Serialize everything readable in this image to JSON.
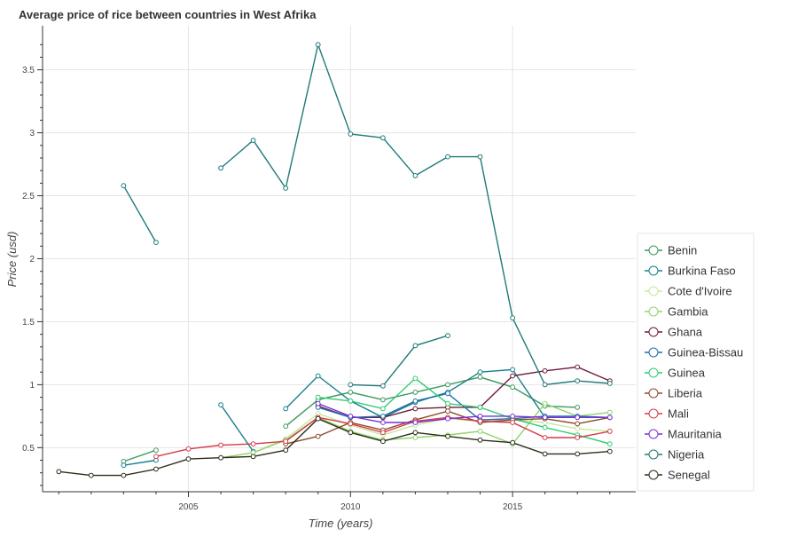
{
  "chart_data": {
    "type": "line",
    "title": "Average price of rice between countries in West Afrika",
    "xlabel": "Time (years)",
    "ylabel": "Price (usd)",
    "xlim": [
      2000.5,
      2018.8
    ],
    "ylim": [
      0.15,
      3.85
    ],
    "xticks": [
      2005,
      2010,
      2015
    ],
    "yticks": [
      0.5,
      1,
      1.5,
      2,
      2.5,
      3,
      3.5
    ],
    "ytick_labels": [
      "0.5",
      "1",
      "1.5",
      "2",
      "2.5",
      "3",
      "3.5"
    ],
    "grid": true,
    "legend_position": "right",
    "series": [
      {
        "name": "Benin",
        "color": "#3c9a5f",
        "x": [
          2003,
          2004,
          null,
          2008,
          2009,
          2010,
          2011,
          2012,
          2013,
          2014,
          2015,
          2016,
          2017,
          2018
        ],
        "y": [
          0.39,
          0.48,
          null,
          0.67,
          0.88,
          0.94,
          0.88,
          0.94,
          1.0,
          1.06,
          0.98,
          0.83,
          0.82,
          null
        ]
      },
      {
        "name": "Burkina Faso",
        "color": "#1a7f8e",
        "x": [
          2003,
          2004,
          null,
          2006,
          2007,
          null,
          2008,
          2009,
          2010,
          2011,
          2012,
          2013,
          2014,
          2015,
          2016
        ],
        "y": [
          0.36,
          0.4,
          null,
          0.84,
          0.47,
          null,
          0.81,
          1.07,
          0.87,
          0.74,
          0.86,
          0.94,
          1.1,
          1.12,
          0.74
        ]
      },
      {
        "name": "Cote d'Ivoire",
        "color": "#c7e89b",
        "x": [
          2007,
          2008,
          2009,
          2010,
          2011,
          2012,
          2013,
          2014,
          2015,
          2016,
          2017,
          2018
        ],
        "y": [
          0.46,
          0.57,
          0.77,
          0.68,
          0.6,
          0.68,
          0.73,
          0.71,
          0.72,
          0.7,
          0.65,
          0.63
        ]
      },
      {
        "name": "Gambia",
        "color": "#8fd46a",
        "x": [
          2006,
          2007,
          2008,
          2009,
          2010,
          2011,
          2012,
          2013,
          2014,
          2015,
          2016,
          2017,
          2018
        ],
        "y": [
          0.42,
          0.46,
          0.56,
          0.74,
          0.63,
          0.56,
          0.58,
          0.6,
          0.63,
          0.53,
          0.85,
          0.75,
          0.78
        ]
      },
      {
        "name": "Ghana",
        "color": "#6e1a3e",
        "x": [
          2009,
          2010,
          2011,
          2012,
          2013,
          2014,
          2015,
          2016,
          2017,
          2018
        ],
        "y": [
          0.83,
          0.74,
          0.74,
          0.81,
          0.82,
          0.82,
          1.07,
          1.11,
          1.14,
          1.03
        ]
      },
      {
        "name": "Guinea-Bissau",
        "color": "#1f6fa8",
        "x": [
          2009,
          2010,
          2011,
          2012,
          2013,
          2014,
          2015,
          2016,
          2017,
          2018
        ],
        "y": [
          0.82,
          0.74,
          0.75,
          0.87,
          0.93,
          0.72,
          0.73,
          0.75,
          0.75,
          0.74
        ]
      },
      {
        "name": "Guinea",
        "color": "#2ecc71",
        "x": [
          2009,
          2010,
          2011,
          2012,
          2013,
          2014,
          2015,
          2016,
          2017,
          2018
        ],
        "y": [
          0.9,
          0.87,
          0.81,
          1.05,
          0.85,
          0.82,
          0.73,
          0.66,
          0.6,
          0.53
        ]
      },
      {
        "name": "Liberia",
        "color": "#8b4a2b",
        "x": [
          2008,
          2009,
          2010,
          2011,
          2012,
          2013,
          2014,
          2015,
          2016,
          2017,
          2018
        ],
        "y": [
          0.53,
          0.59,
          0.7,
          0.64,
          0.72,
          0.79,
          0.7,
          0.72,
          0.73,
          0.69,
          0.74
        ]
      },
      {
        "name": "Mali",
        "color": "#d63a4a",
        "x": [
          2004,
          2005,
          2006,
          2007,
          2008,
          2009,
          2010,
          2011,
          2012,
          2013,
          2014,
          2015,
          2016,
          2017,
          2018
        ],
        "y": [
          0.43,
          0.49,
          0.52,
          0.53,
          0.55,
          0.74,
          0.69,
          0.62,
          0.71,
          0.74,
          0.71,
          0.7,
          0.58,
          0.58,
          0.63
        ]
      },
      {
        "name": "Mauritania",
        "color": "#7a2fd6",
        "x": [
          2009,
          2010,
          2011,
          2012,
          2013,
          2014,
          2015,
          2016,
          2017,
          2018
        ],
        "y": [
          0.85,
          0.75,
          0.7,
          0.7,
          0.73,
          0.75,
          0.75,
          0.74,
          0.74,
          0.74
        ]
      },
      {
        "name": "Nigeria",
        "color": "#1f7a78",
        "x": [
          2003,
          2004,
          null,
          2006,
          2007,
          2008,
          2009,
          2010,
          2011,
          2012,
          2013,
          2014,
          2015,
          2016,
          2017,
          2018,
          null,
          2010,
          2011,
          2012,
          2013
        ],
        "y": [
          2.58,
          2.13,
          null,
          2.72,
          2.94,
          2.56,
          3.7,
          2.99,
          2.96,
          2.66,
          2.81,
          2.81,
          1.53,
          1.0,
          1.03,
          1.01,
          null,
          1.0,
          0.99,
          1.31,
          1.39
        ]
      },
      {
        "name": "Senegal",
        "color": "#2d2d1a",
        "x": [
          2001,
          2002,
          2003,
          2004,
          2005,
          2006,
          2007,
          2008,
          2009,
          2010,
          2011,
          2012,
          2013,
          2014,
          2015,
          2016,
          2017,
          2018
        ],
        "y": [
          0.31,
          0.28,
          0.28,
          0.33,
          0.41,
          0.42,
          0.43,
          0.48,
          0.73,
          0.62,
          0.55,
          0.62,
          0.59,
          0.56,
          0.54,
          0.45,
          0.45,
          0.47
        ]
      }
    ]
  }
}
